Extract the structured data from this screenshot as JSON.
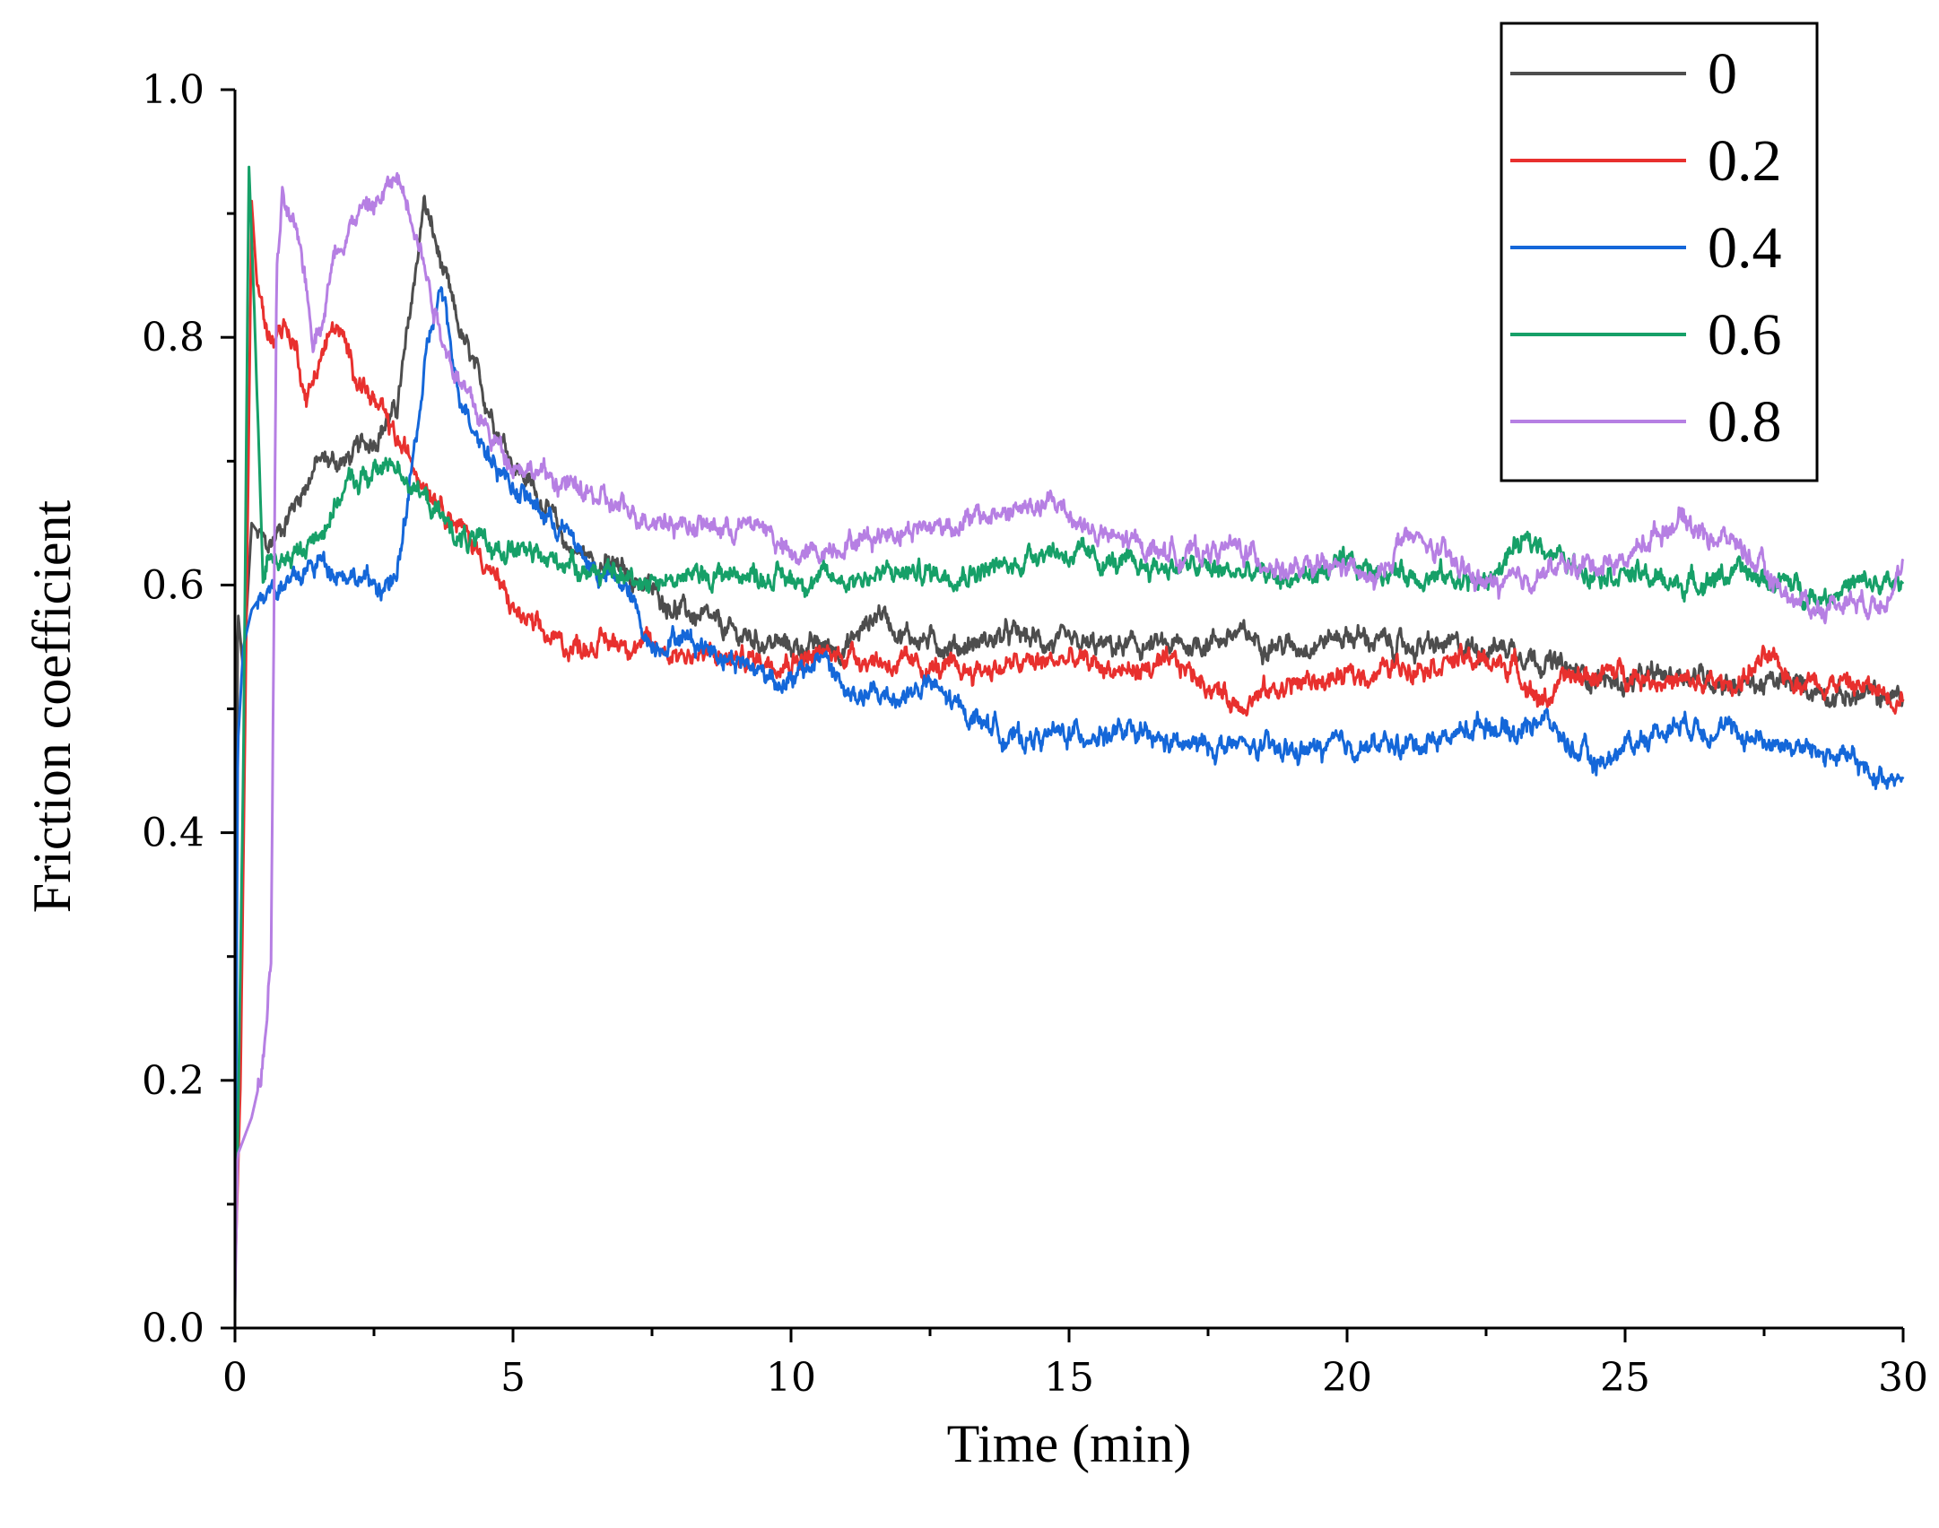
{
  "chart_data": {
    "type": "line",
    "title": "",
    "xlabel": "Time (min)",
    "ylabel": "Friction coefficient",
    "xlim": [
      0,
      30
    ],
    "ylim": [
      0,
      1.0
    ],
    "x_ticks": [
      0,
      5,
      10,
      15,
      20,
      25,
      30
    ],
    "x_tick_labels": [
      "0",
      "5",
      "10",
      "15",
      "20",
      "25",
      "30"
    ],
    "y_ticks": [
      0,
      0.2,
      0.4,
      0.6,
      0.8,
      1.0
    ],
    "y_tick_labels": [
      "0.0",
      "0.2",
      "0.4",
      "0.6",
      "0.8",
      "1.0"
    ],
    "grid": false,
    "legend_position": "top-right",
    "series": [
      {
        "name": "0",
        "color": "#4d4d4d",
        "points": [
          [
            0,
            0.02
          ],
          [
            0.05,
            0.58
          ],
          [
            0.15,
            0.53
          ],
          [
            0.3,
            0.65
          ],
          [
            0.6,
            0.63
          ],
          [
            1.0,
            0.66
          ],
          [
            1.5,
            0.7
          ],
          [
            2.0,
            0.7
          ],
          [
            2.5,
            0.72
          ],
          [
            2.9,
            0.74
          ],
          [
            3.1,
            0.8
          ],
          [
            3.4,
            0.91
          ],
          [
            3.7,
            0.86
          ],
          [
            4.0,
            0.81
          ],
          [
            4.5,
            0.75
          ],
          [
            5.0,
            0.7
          ],
          [
            5.5,
            0.67
          ],
          [
            6.0,
            0.63
          ],
          [
            7.0,
            0.61
          ],
          [
            8.0,
            0.58
          ],
          [
            9.0,
            0.56
          ],
          [
            10.0,
            0.55
          ],
          [
            11.0,
            0.55
          ],
          [
            11.6,
            0.58
          ],
          [
            12.0,
            0.56
          ],
          [
            13.0,
            0.55
          ],
          [
            14.0,
            0.56
          ],
          [
            15.0,
            0.55
          ],
          [
            16.0,
            0.55
          ],
          [
            17.0,
            0.55
          ],
          [
            18.0,
            0.56
          ],
          [
            19.0,
            0.55
          ],
          [
            20.0,
            0.56
          ],
          [
            21.0,
            0.55
          ],
          [
            22.0,
            0.55
          ],
          [
            23.0,
            0.55
          ],
          [
            24.0,
            0.53
          ],
          [
            25.0,
            0.52
          ],
          [
            26.0,
            0.53
          ],
          [
            27.0,
            0.52
          ],
          [
            28.0,
            0.52
          ],
          [
            29.0,
            0.51
          ],
          [
            30.0,
            0.51
          ]
        ]
      },
      {
        "name": "0.2",
        "color": "#e8302e",
        "points": [
          [
            0,
            0.04
          ],
          [
            0.1,
            0.2
          ],
          [
            0.2,
            0.55
          ],
          [
            0.3,
            0.91
          ],
          [
            0.4,
            0.84
          ],
          [
            0.6,
            0.8
          ],
          [
            0.9,
            0.81
          ],
          [
            1.1,
            0.79
          ],
          [
            1.3,
            0.75
          ],
          [
            1.5,
            0.78
          ],
          [
            1.8,
            0.81
          ],
          [
            2.2,
            0.77
          ],
          [
            2.6,
            0.74
          ],
          [
            3.0,
            0.71
          ],
          [
            3.5,
            0.68
          ],
          [
            4.0,
            0.65
          ],
          [
            4.5,
            0.62
          ],
          [
            5.0,
            0.58
          ],
          [
            5.5,
            0.56
          ],
          [
            6.0,
            0.55
          ],
          [
            7.0,
            0.555
          ],
          [
            8.0,
            0.545
          ],
          [
            9.0,
            0.54
          ],
          [
            10.0,
            0.54
          ],
          [
            11.0,
            0.545
          ],
          [
            12.0,
            0.535
          ],
          [
            13.0,
            0.53
          ],
          [
            14.0,
            0.535
          ],
          [
            15.0,
            0.54
          ],
          [
            16.0,
            0.53
          ],
          [
            17.0,
            0.535
          ],
          [
            17.5,
            0.52
          ],
          [
            18.0,
            0.505
          ],
          [
            19.0,
            0.52
          ],
          [
            20.0,
            0.525
          ],
          [
            21.0,
            0.535
          ],
          [
            22.0,
            0.54
          ],
          [
            23.0,
            0.535
          ],
          [
            23.5,
            0.505
          ],
          [
            24.0,
            0.525
          ],
          [
            25.0,
            0.53
          ],
          [
            26.0,
            0.52
          ],
          [
            27.0,
            0.52
          ],
          [
            27.5,
            0.54
          ],
          [
            28.0,
            0.525
          ],
          [
            29.0,
            0.52
          ],
          [
            30.0,
            0.51
          ]
        ]
      },
      {
        "name": "0.4",
        "color": "#1467d9",
        "points": [
          [
            0,
            0.02
          ],
          [
            0.05,
            0.47
          ],
          [
            0.15,
            0.55
          ],
          [
            0.3,
            0.58
          ],
          [
            0.6,
            0.6
          ],
          [
            1.0,
            0.6
          ],
          [
            1.5,
            0.62
          ],
          [
            2.0,
            0.61
          ],
          [
            2.5,
            0.6
          ],
          [
            2.9,
            0.6
          ],
          [
            3.2,
            0.7
          ],
          [
            3.5,
            0.8
          ],
          [
            3.7,
            0.84
          ],
          [
            4.0,
            0.76
          ],
          [
            4.5,
            0.71
          ],
          [
            5.0,
            0.68
          ],
          [
            5.5,
            0.66
          ],
          [
            6.0,
            0.64
          ],
          [
            6.5,
            0.61
          ],
          [
            7.0,
            0.6
          ],
          [
            7.5,
            0.55
          ],
          [
            8.0,
            0.56
          ],
          [
            9.0,
            0.54
          ],
          [
            10.0,
            0.52
          ],
          [
            10.6,
            0.545
          ],
          [
            11.0,
            0.51
          ],
          [
            12.0,
            0.51
          ],
          [
            12.5,
            0.52
          ],
          [
            13.0,
            0.5
          ],
          [
            13.5,
            0.49
          ],
          [
            14.0,
            0.475
          ],
          [
            15.0,
            0.48
          ],
          [
            16.0,
            0.48
          ],
          [
            17.0,
            0.47
          ],
          [
            18.0,
            0.47
          ],
          [
            19.0,
            0.465
          ],
          [
            20.0,
            0.47
          ],
          [
            21.0,
            0.47
          ],
          [
            22.0,
            0.48
          ],
          [
            22.5,
            0.49
          ],
          [
            23.0,
            0.48
          ],
          [
            23.5,
            0.495
          ],
          [
            24.0,
            0.47
          ],
          [
            24.5,
            0.455
          ],
          [
            25.0,
            0.47
          ],
          [
            25.5,
            0.48
          ],
          [
            26.0,
            0.49
          ],
          [
            27.0,
            0.48
          ],
          [
            28.0,
            0.47
          ],
          [
            29.0,
            0.46
          ],
          [
            29.5,
            0.445
          ],
          [
            30.0,
            0.45
          ]
        ]
      },
      {
        "name": "0.6",
        "color": "#16a068",
        "points": [
          [
            0,
            0.04
          ],
          [
            0.05,
            0.15
          ],
          [
            0.15,
            0.45
          ],
          [
            0.25,
            0.94
          ],
          [
            0.35,
            0.82
          ],
          [
            0.5,
            0.6
          ],
          [
            0.6,
            0.62
          ],
          [
            1.0,
            0.62
          ],
          [
            1.5,
            0.64
          ],
          [
            2.0,
            0.68
          ],
          [
            2.5,
            0.69
          ],
          [
            2.9,
            0.7
          ],
          [
            3.2,
            0.68
          ],
          [
            3.6,
            0.66
          ],
          [
            4.0,
            0.64
          ],
          [
            4.5,
            0.63
          ],
          [
            5.0,
            0.63
          ],
          [
            5.5,
            0.62
          ],
          [
            6.0,
            0.62
          ],
          [
            6.5,
            0.61
          ],
          [
            7.0,
            0.605
          ],
          [
            8.0,
            0.605
          ],
          [
            9.0,
            0.61
          ],
          [
            10.0,
            0.605
          ],
          [
            11.0,
            0.605
          ],
          [
            12.0,
            0.61
          ],
          [
            13.0,
            0.61
          ],
          [
            14.0,
            0.615
          ],
          [
            14.5,
            0.63
          ],
          [
            15.0,
            0.625
          ],
          [
            16.0,
            0.615
          ],
          [
            17.0,
            0.615
          ],
          [
            18.0,
            0.61
          ],
          [
            19.0,
            0.605
          ],
          [
            20.0,
            0.615
          ],
          [
            21.0,
            0.61
          ],
          [
            22.0,
            0.605
          ],
          [
            22.5,
            0.6
          ],
          [
            23.0,
            0.63
          ],
          [
            23.5,
            0.635
          ],
          [
            24.0,
            0.615
          ],
          [
            25.0,
            0.61
          ],
          [
            26.0,
            0.6
          ],
          [
            27.0,
            0.61
          ],
          [
            28.0,
            0.6
          ],
          [
            28.5,
            0.59
          ],
          [
            29.0,
            0.6
          ],
          [
            30.0,
            0.6
          ]
        ]
      },
      {
        "name": "0.8",
        "color": "#b67fe3",
        "points": [
          [
            0,
            0.02
          ],
          [
            0.05,
            0.14
          ],
          [
            0.3,
            0.17
          ],
          [
            0.5,
            0.21
          ],
          [
            0.65,
            0.3
          ],
          [
            0.75,
            0.85
          ],
          [
            0.85,
            0.91
          ],
          [
            1.0,
            0.89
          ],
          [
            1.2,
            0.87
          ],
          [
            1.4,
            0.8
          ],
          [
            1.6,
            0.82
          ],
          [
            1.8,
            0.87
          ],
          [
            2.2,
            0.9
          ],
          [
            2.6,
            0.91
          ],
          [
            2.9,
            0.93
          ],
          [
            3.2,
            0.9
          ],
          [
            3.5,
            0.84
          ],
          [
            3.8,
            0.79
          ],
          [
            4.2,
            0.75
          ],
          [
            4.6,
            0.72
          ],
          [
            5.0,
            0.7
          ],
          [
            6.0,
            0.68
          ],
          [
            7.0,
            0.66
          ],
          [
            8.0,
            0.65
          ],
          [
            9.0,
            0.645
          ],
          [
            9.5,
            0.65
          ],
          [
            10.0,
            0.62
          ],
          [
            11.0,
            0.635
          ],
          [
            12.0,
            0.645
          ],
          [
            13.0,
            0.65
          ],
          [
            14.0,
            0.66
          ],
          [
            14.8,
            0.665
          ],
          [
            15.5,
            0.64
          ],
          [
            16.0,
            0.635
          ],
          [
            17.0,
            0.625
          ],
          [
            18.0,
            0.63
          ],
          [
            19.0,
            0.61
          ],
          [
            20.0,
            0.615
          ],
          [
            20.5,
            0.6
          ],
          [
            21.0,
            0.64
          ],
          [
            21.5,
            0.63
          ],
          [
            22.0,
            0.615
          ],
          [
            22.5,
            0.6
          ],
          [
            23.0,
            0.6
          ],
          [
            23.5,
            0.61
          ],
          [
            24.0,
            0.615
          ],
          [
            25.0,
            0.62
          ],
          [
            25.5,
            0.64
          ],
          [
            26.0,
            0.655
          ],
          [
            26.5,
            0.64
          ],
          [
            27.0,
            0.635
          ],
          [
            27.5,
            0.61
          ],
          [
            28.0,
            0.59
          ],
          [
            28.5,
            0.58
          ],
          [
            29.0,
            0.59
          ],
          [
            29.5,
            0.585
          ],
          [
            30.0,
            0.61
          ]
        ]
      }
    ]
  }
}
